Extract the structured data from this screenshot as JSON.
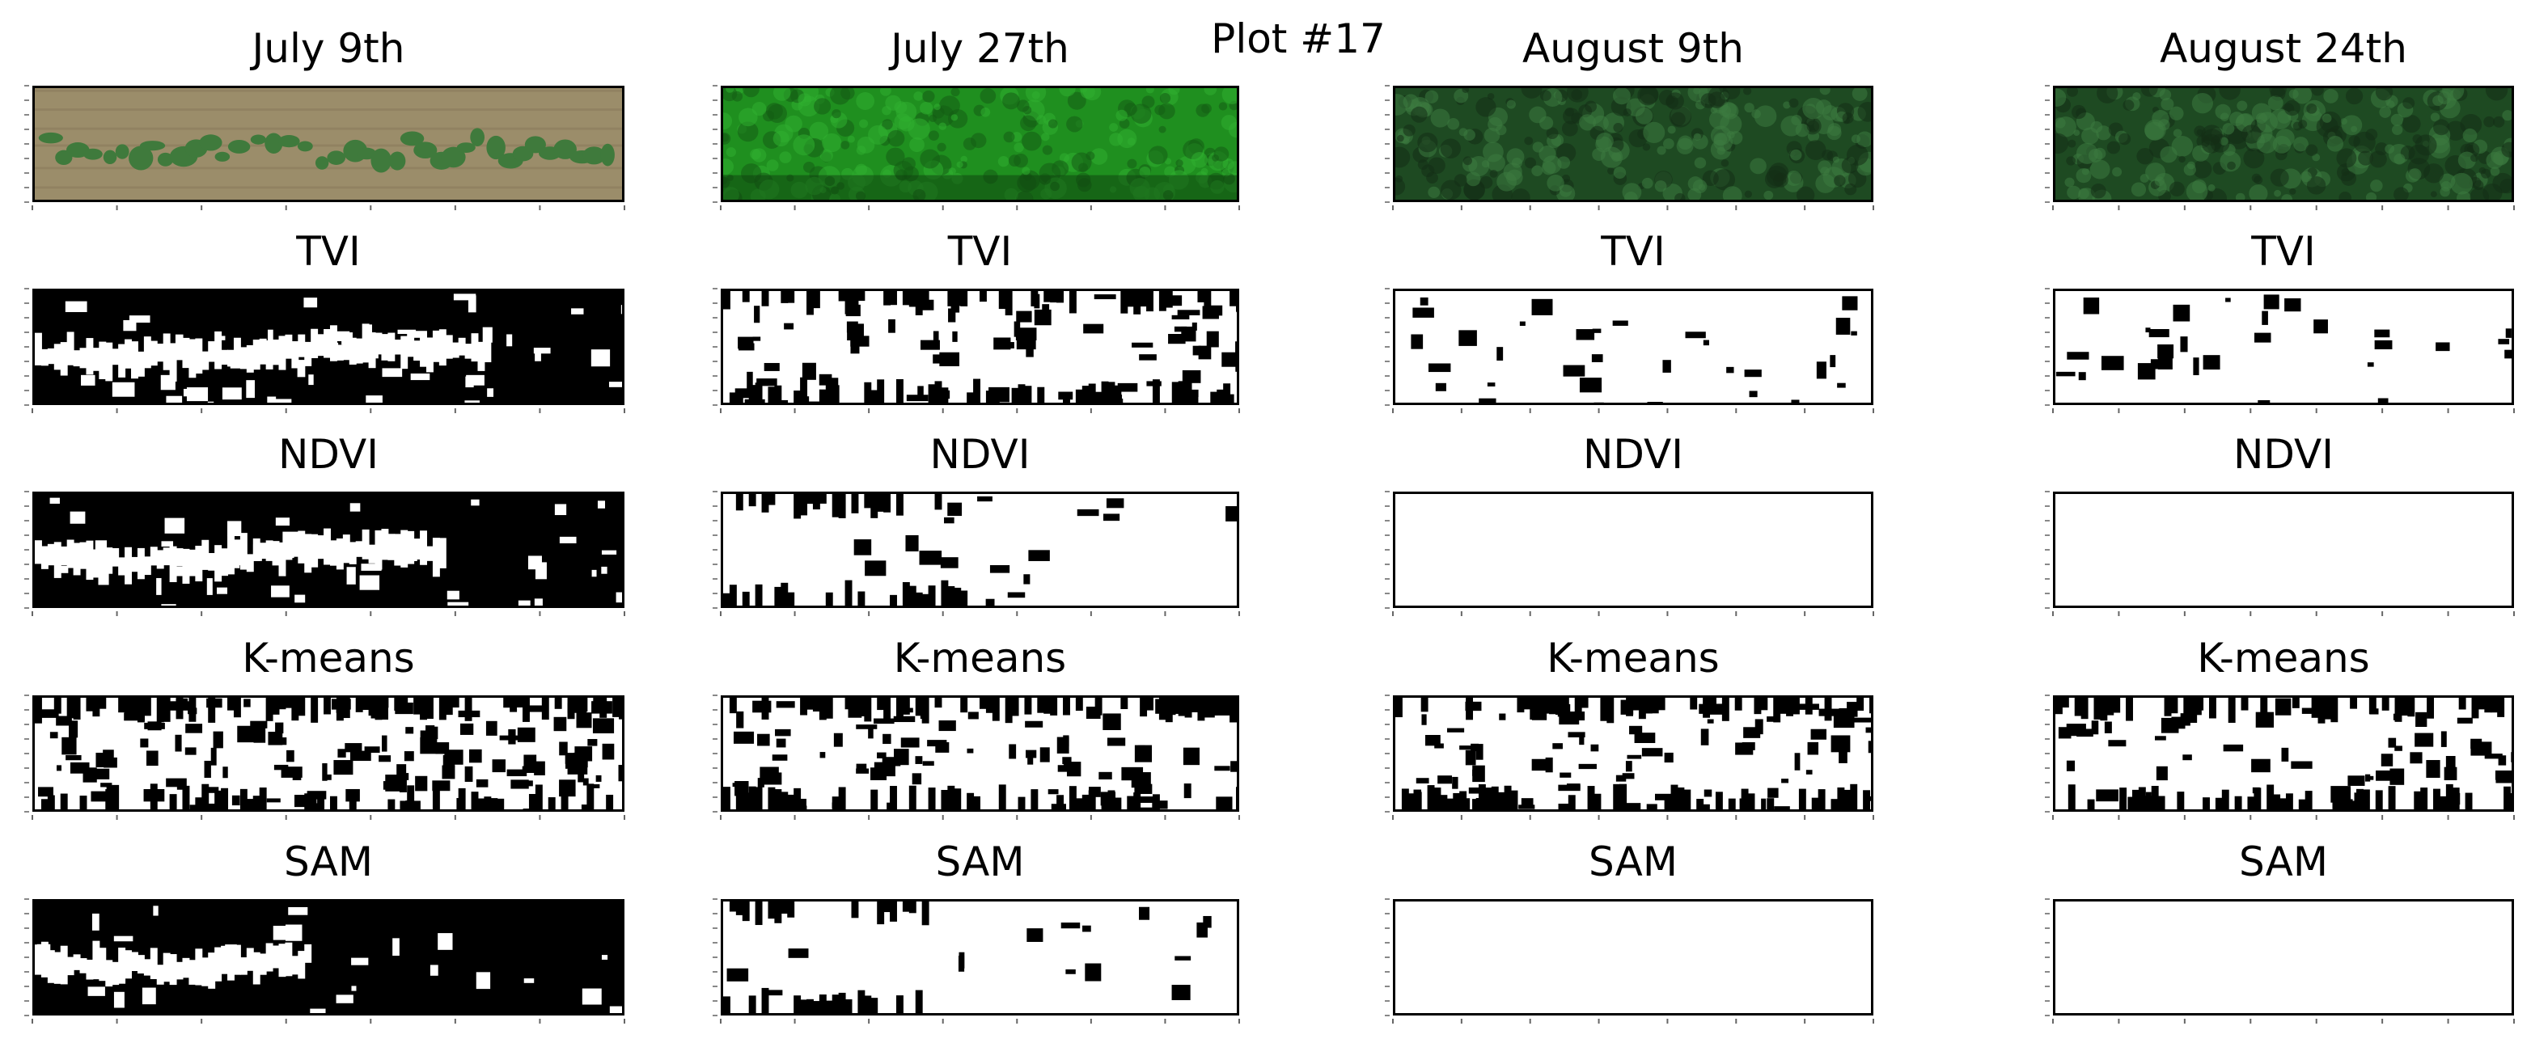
{
  "figure": {
    "title": "Plot #17"
  },
  "columns": [
    {
      "date": "July 9th",
      "panels": [
        {
          "kind": "photo",
          "label": ""
        },
        {
          "kind": "mask",
          "label": "TVI",
          "foreground_fraction": 0.3
        },
        {
          "kind": "mask",
          "label": "NDVI",
          "foreground_fraction": 0.27
        },
        {
          "kind": "mask",
          "label": "K-means",
          "foreground_fraction": 0.52
        },
        {
          "kind": "mask",
          "label": "SAM",
          "foreground_fraction": 0.18
        }
      ]
    },
    {
      "date": "July 27th",
      "panels": [
        {
          "kind": "photo",
          "label": ""
        },
        {
          "kind": "mask",
          "label": "TVI",
          "foreground_fraction": 0.62
        },
        {
          "kind": "mask",
          "label": "NDVI",
          "foreground_fraction": 0.85
        },
        {
          "kind": "mask",
          "label": "K-means",
          "foreground_fraction": 0.58
        },
        {
          "kind": "mask",
          "label": "SAM",
          "foreground_fraction": 0.88
        }
      ]
    },
    {
      "date": "August 9th",
      "panels": [
        {
          "kind": "photo",
          "label": ""
        },
        {
          "kind": "mask",
          "label": "TVI",
          "foreground_fraction": 0.93
        },
        {
          "kind": "mask",
          "label": "NDVI",
          "foreground_fraction": 1.0
        },
        {
          "kind": "mask",
          "label": "K-means",
          "foreground_fraction": 0.6
        },
        {
          "kind": "mask",
          "label": "SAM",
          "foreground_fraction": 1.0
        }
      ]
    },
    {
      "date": "August 24th",
      "panels": [
        {
          "kind": "photo",
          "label": ""
        },
        {
          "kind": "mask",
          "label": "TVI",
          "foreground_fraction": 0.92
        },
        {
          "kind": "mask",
          "label": "NDVI",
          "foreground_fraction": 1.0
        },
        {
          "kind": "mask",
          "label": "K-means",
          "foreground_fraction": 0.62
        },
        {
          "kind": "mask",
          "label": "SAM",
          "foreground_fraction": 1.0
        }
      ]
    }
  ],
  "colors": {
    "mask_foreground": "#ffffff",
    "mask_background": "#000000",
    "soil": "#9b8d6a",
    "plant": "#3f7a3c",
    "canopy_bright": "#1f8f1f",
    "canopy_dark": "#1e4a22"
  }
}
